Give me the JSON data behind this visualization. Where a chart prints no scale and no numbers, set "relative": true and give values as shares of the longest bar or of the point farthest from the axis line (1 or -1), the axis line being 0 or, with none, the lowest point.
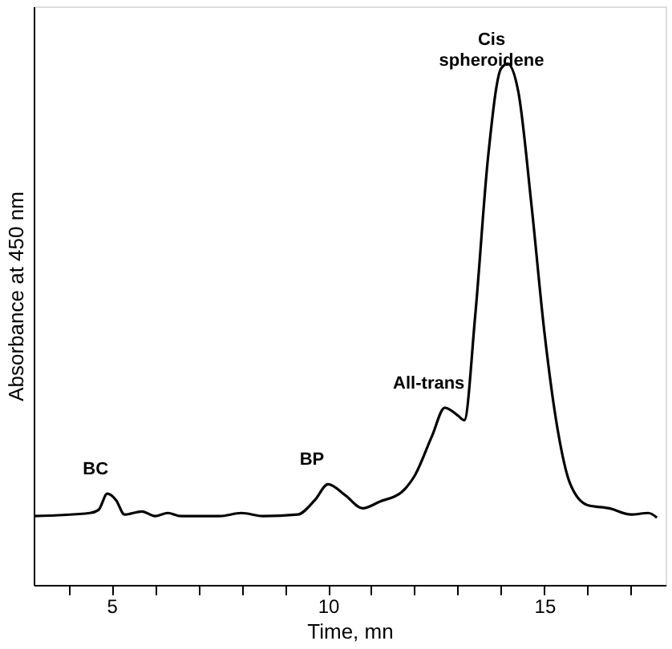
{
  "chart_data": {
    "type": "line",
    "xlabel": "Time, mn",
    "ylabel": "Absorbance at 450 nm",
    "relative": true,
    "xlim": [
      3.2,
      17.8
    ],
    "xticks": [
      {
        "value": 4,
        "label": null
      },
      5,
      {
        "value": 6,
        "label": null
      },
      {
        "value": 7,
        "label": null
      },
      {
        "value": 8,
        "label": null
      },
      {
        "value": 9,
        "label": null
      },
      10,
      {
        "value": 11,
        "label": null
      },
      {
        "value": 12,
        "label": null
      },
      {
        "value": 13,
        "label": null
      },
      {
        "value": 14,
        "label": null
      },
      15,
      {
        "value": 16,
        "label": null
      },
      {
        "value": 17,
        "label": null
      }
    ],
    "grid": false,
    "marker": "none",
    "line_style": "solid",
    "series": [
      {
        "color": "#000000",
        "x": [
          3.2,
          4.5,
          4.7,
          4.9,
          5.1,
          5.3,
          5.7,
          6.0,
          6.3,
          6.6,
          7.5,
          8.0,
          8.5,
          9.3,
          9.7,
          10.0,
          10.4,
          10.8,
          11.2,
          11.7,
          12.0,
          12.4,
          12.7,
          13.0,
          13.15,
          13.4,
          13.7,
          14.0,
          14.15,
          14.4,
          14.7,
          15.0,
          15.3,
          15.6,
          16.0,
          16.5,
          17.0,
          17.4,
          17.6
        ],
        "values": [
          0.132,
          0.138,
          0.144,
          0.175,
          0.163,
          0.135,
          0.141,
          0.132,
          0.138,
          0.132,
          0.132,
          0.138,
          0.132,
          0.135,
          0.163,
          0.193,
          0.172,
          0.147,
          0.16,
          0.178,
          0.209,
          0.285,
          0.34,
          0.325,
          0.316,
          0.515,
          0.822,
          0.991,
          1.0,
          0.945,
          0.73,
          0.485,
          0.301,
          0.193,
          0.153,
          0.147,
          0.135,
          0.138,
          0.129
        ]
      }
    ],
    "annotations": [
      {
        "text": "BC",
        "x": 5,
        "y": 0.175
      },
      {
        "text": "BP",
        "x": 10,
        "y": 0.193
      },
      {
        "text": "All-trans",
        "x": 12.7,
        "y": 0.34
      },
      {
        "text": "Cis\nspheroidene",
        "x": 14.15,
        "y": 1.0
      }
    ]
  }
}
